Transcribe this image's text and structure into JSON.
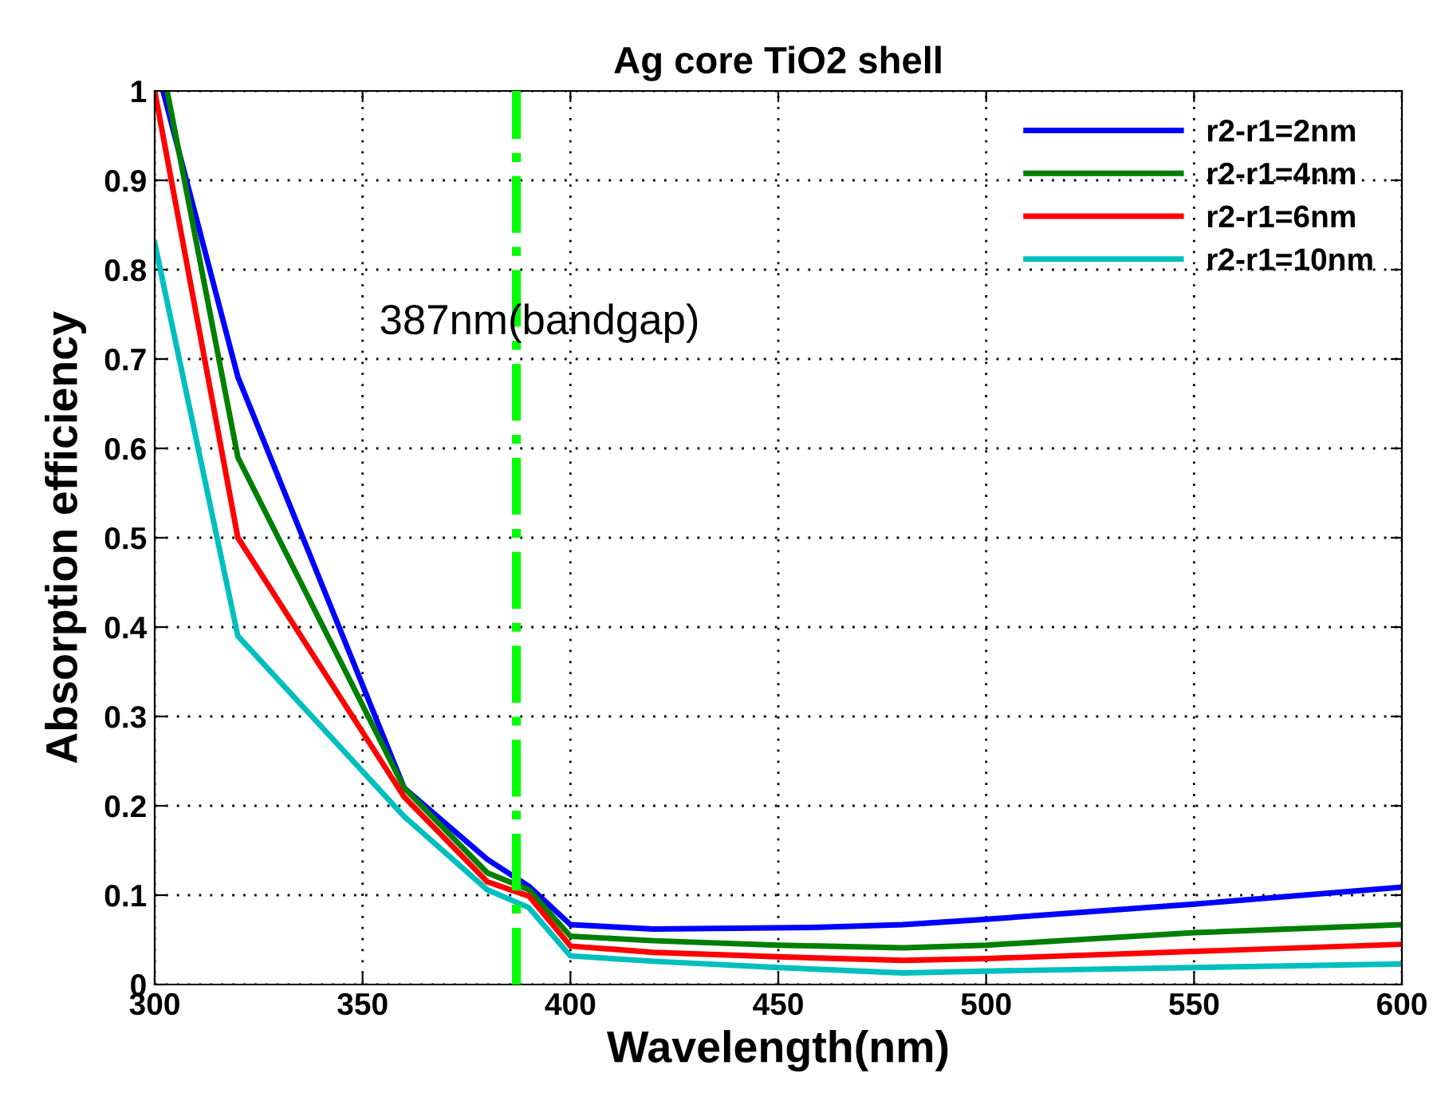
{
  "chart_data": {
    "type": "line",
    "title": "Ag core TiO2 shell",
    "xlabel": "Wavelength(nm)",
    "ylabel": "Absorption efficiency",
    "xlim": [
      300,
      600
    ],
    "ylim": [
      0,
      1
    ],
    "xticks": [
      300,
      350,
      400,
      450,
      500,
      550,
      600
    ],
    "yticks": [
      0,
      0.1,
      0.2,
      0.3,
      0.4,
      0.5,
      0.6,
      0.7,
      0.8,
      0.9,
      1
    ],
    "grid": true,
    "legend": "top right",
    "line_style": "solid",
    "ref_lines": [
      {
        "axis": "x",
        "value": 387,
        "label": "387nm(bandgap)",
        "color": "#00ff00",
        "line_style": "dashdot"
      }
    ],
    "series": [
      {
        "name": "r2-r1=2nm",
        "color": "#0000ff",
        "x": [
          302,
          320,
          360,
          380,
          390,
          400,
          420,
          460,
          480,
          500,
          550,
          600
        ],
        "values": [
          1.0,
          0.68,
          0.22,
          0.14,
          0.11,
          0.067,
          0.062,
          0.064,
          0.067,
          0.073,
          0.09,
          0.109
        ]
      },
      {
        "name": "r2-r1=4nm",
        "color": "#007f00",
        "x": [
          303,
          320,
          360,
          380,
          390,
          400,
          420,
          450,
          480,
          500,
          550,
          600
        ],
        "values": [
          1.0,
          0.59,
          0.22,
          0.125,
          0.106,
          0.054,
          0.049,
          0.044,
          0.041,
          0.044,
          0.058,
          0.067
        ]
      },
      {
        "name": "r2-r1=6nm",
        "color": "#ff0000",
        "x": [
          300,
          320,
          360,
          380,
          390,
          400,
          420,
          450,
          480,
          500,
          550,
          600
        ],
        "values": [
          1.0,
          0.5,
          0.21,
          0.115,
          0.099,
          0.043,
          0.036,
          0.031,
          0.027,
          0.029,
          0.037,
          0.045
        ]
      },
      {
        "name": "r2-r1=10nm",
        "color": "#00bfbf",
        "x": [
          300,
          320,
          360,
          380,
          390,
          400,
          420,
          450,
          480,
          500,
          550,
          600
        ],
        "values": [
          0.83,
          0.39,
          0.188,
          0.106,
          0.086,
          0.032,
          0.026,
          0.019,
          0.013,
          0.015,
          0.019,
          0.023
        ]
      }
    ]
  }
}
